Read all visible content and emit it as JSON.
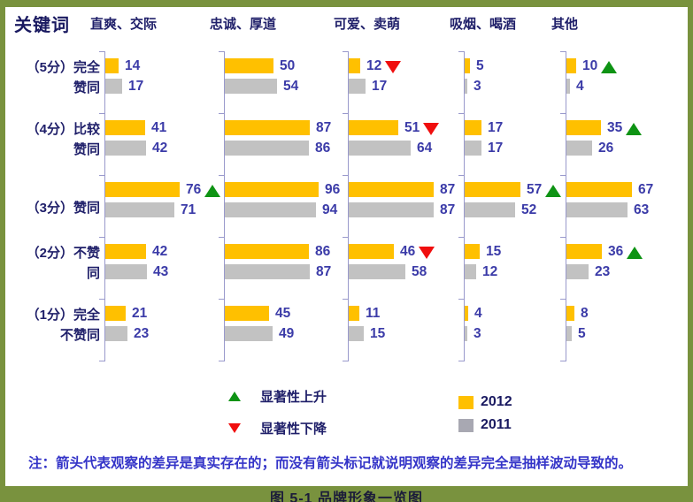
{
  "colors": {
    "frame": "#79923E",
    "bar_2012": "#FFC000",
    "bar_2011": "#C2C2C2",
    "swatch_2011": "#A8A8B2",
    "value_text": "#3B3BA8",
    "label_text": "#20206A",
    "title_text": "#191960",
    "axis": "#9999CC",
    "up_arrow": "#0E9314",
    "down_arrow": "#F00E0E",
    "note_text": "#3434C8",
    "caption_text": "#1B1B3A"
  },
  "legend": {
    "up_label": "显著性上升",
    "down_label": "显著性下降",
    "year_2012": "2012",
    "year_2011": "2011"
  },
  "note": "注：箭头代表观察的差异是真实存在的；而没有箭头标记就说明观察的差异完全是抽样波动导致的。",
  "caption": "图 5-1  品牌形象一览图",
  "chart_data": {
    "type": "bar",
    "orientation": "horizontal",
    "title": "关键词",
    "value_range": [
      0,
      100
    ],
    "grid": false,
    "legend_position": "bottom",
    "categories": [
      "（5分）完全赞同",
      "（4分）比较赞同",
      "（3分）赞同",
      "（2分）不赞同",
      "（1分）完全不赞同"
    ],
    "category_lines": [
      [
        "（5分）完全",
        "赞同"
      ],
      [
        "（4分）比较",
        "赞同"
      ],
      [
        "（3分）赞同"
      ],
      [
        "（2分）不赞",
        "同"
      ],
      [
        "（1分）完全",
        "不赞同"
      ]
    ],
    "series_names": [
      "2012",
      "2011"
    ],
    "arrow_meanings": {
      "up": "显著性上升",
      "down": "显著性下降"
    },
    "panels": [
      {
        "header": "直爽、交际",
        "series_2012": [
          14,
          41,
          76,
          42,
          21
        ],
        "series_2011": [
          17,
          42,
          71,
          43,
          23
        ],
        "arrows": [
          null,
          null,
          "up",
          null,
          null
        ]
      },
      {
        "header": "忠诚、厚道",
        "series_2012": [
          50,
          87,
          96,
          86,
          45
        ],
        "series_2011": [
          54,
          86,
          94,
          87,
          49
        ],
        "arrows": [
          null,
          null,
          null,
          null,
          null
        ]
      },
      {
        "header": "可爱、卖萌",
        "series_2012": [
          12,
          51,
          87,
          46,
          11
        ],
        "series_2011": [
          17,
          64,
          87,
          58,
          15
        ],
        "arrows": [
          "down",
          "down",
          null,
          "down",
          null
        ]
      },
      {
        "header": "吸烟、喝酒",
        "series_2012": [
          5,
          17,
          57,
          15,
          4
        ],
        "series_2011": [
          3,
          17,
          52,
          12,
          3
        ],
        "arrows": [
          null,
          null,
          "up",
          null,
          null
        ]
      },
      {
        "header": "其他",
        "series_2012": [
          10,
          35,
          67,
          36,
          8
        ],
        "series_2011": [
          4,
          26,
          63,
          23,
          5
        ],
        "arrows": [
          "up",
          "up",
          null,
          "up",
          null
        ]
      }
    ]
  }
}
